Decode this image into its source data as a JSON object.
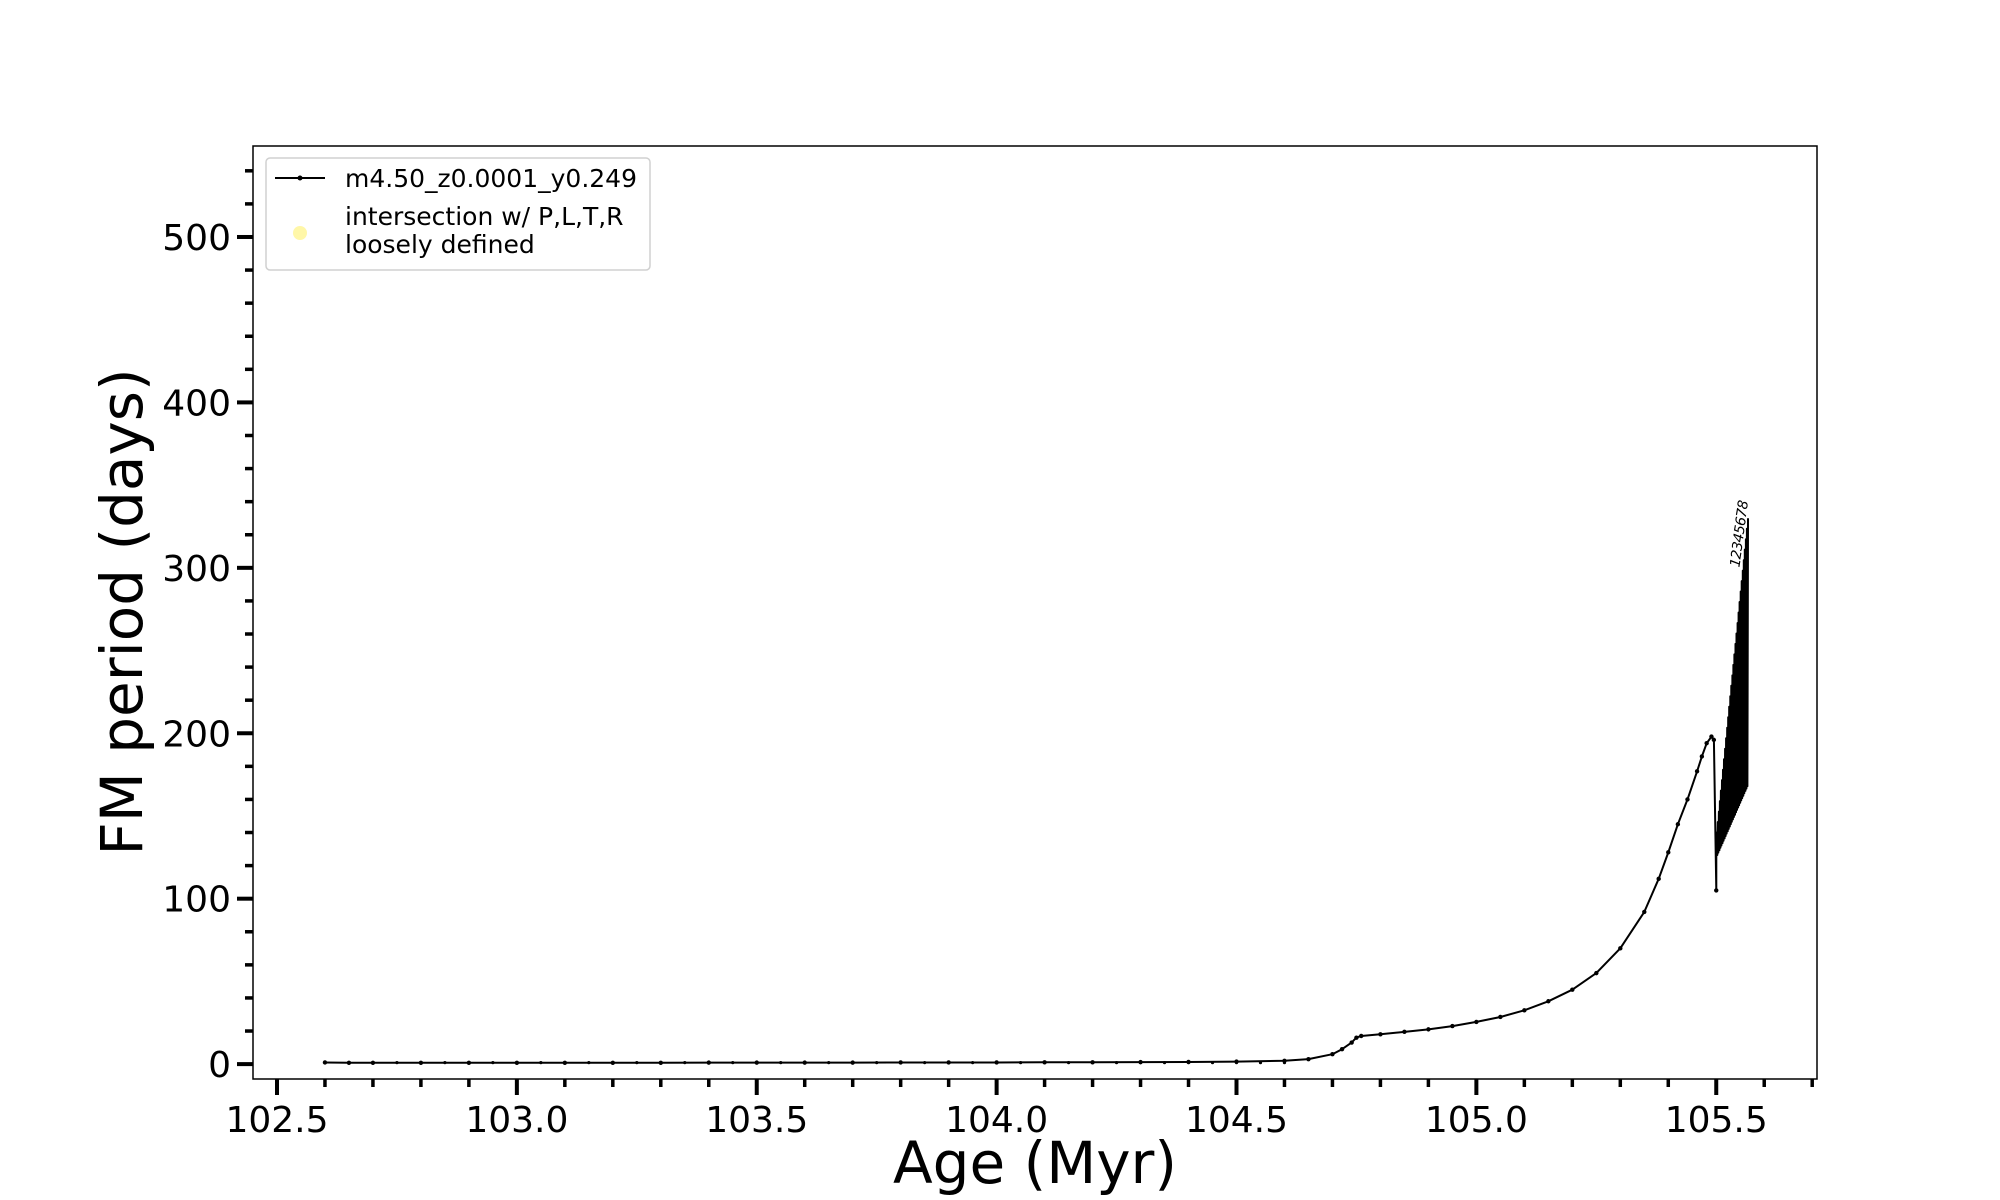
{
  "chart_data": {
    "type": "line",
    "xlabel": "Age (Myr)",
    "ylabel": "FM period (days)",
    "xlim": [
      102.45,
      105.71
    ],
    "ylim": [
      -9,
      555
    ],
    "xticks": [
      102.5,
      103.0,
      103.5,
      104.0,
      104.5,
      105.0,
      105.5
    ],
    "xtick_labels": [
      "102.5",
      "103.0",
      "103.5",
      "104.0",
      "104.5",
      "105.0",
      "105.5"
    ],
    "xminor_step": 0.1,
    "yticks": [
      0,
      100,
      200,
      300,
      400,
      500
    ],
    "ytick_labels": [
      "0",
      "100",
      "200",
      "300",
      "400",
      "500"
    ],
    "yminor_step": 20,
    "grid": false,
    "legend": {
      "placement": "upper-left",
      "entries": [
        {
          "label": "m4.50_z0.0001_y0.249",
          "color": "#000000",
          "marker": "line-with-dots"
        },
        {
          "label_lines": [
            "intersection w/ P,L,T,R",
            "loosely defined"
          ],
          "color": "#fff7a8",
          "marker": "circle"
        }
      ]
    },
    "series": [
      {
        "name": "m4.50_z0.0001_y0.249",
        "color": "#000000",
        "x": [
          102.6,
          102.65,
          102.7,
          102.8,
          102.9,
          103.0,
          103.1,
          103.2,
          103.3,
          103.4,
          103.5,
          103.6,
          103.7,
          103.8,
          103.9,
          104.0,
          104.1,
          104.2,
          104.3,
          104.4,
          104.5,
          104.6,
          104.65,
          104.7,
          104.72,
          104.74,
          104.75,
          104.76,
          104.8,
          104.85,
          104.9,
          104.95,
          105.0,
          105.05,
          105.1,
          105.15,
          105.2,
          105.25,
          105.3,
          105.35,
          105.38,
          105.4,
          105.42,
          105.44,
          105.46,
          105.47,
          105.48,
          105.49,
          105.495,
          105.5
        ],
        "y": [
          1.0,
          0.8,
          0.8,
          0.8,
          0.8,
          0.8,
          0.8,
          0.8,
          0.8,
          0.9,
          0.9,
          0.9,
          0.9,
          1.0,
          1.0,
          1.0,
          1.1,
          1.1,
          1.2,
          1.3,
          1.5,
          2.0,
          3.0,
          6.0,
          9.0,
          13.0,
          16.0,
          17.0,
          18.0,
          19.5,
          21.0,
          23.0,
          25.5,
          28.5,
          32.5,
          38.0,
          45.0,
          55.0,
          70.0,
          92.0,
          112.0,
          128.0,
          145.0,
          160.0,
          177.0,
          186.0,
          194.0,
          198.0,
          196.0,
          105.0
        ]
      }
    ],
    "oscillation": {
      "x_start": 105.5,
      "x_end": 105.565,
      "low_start": 125,
      "low_end": 168,
      "high_start": 140,
      "high_end": 330,
      "cycles": 30
    },
    "annotations": [
      "1",
      "2",
      "3",
      "4",
      "5",
      "6",
      "7",
      "8"
    ]
  }
}
